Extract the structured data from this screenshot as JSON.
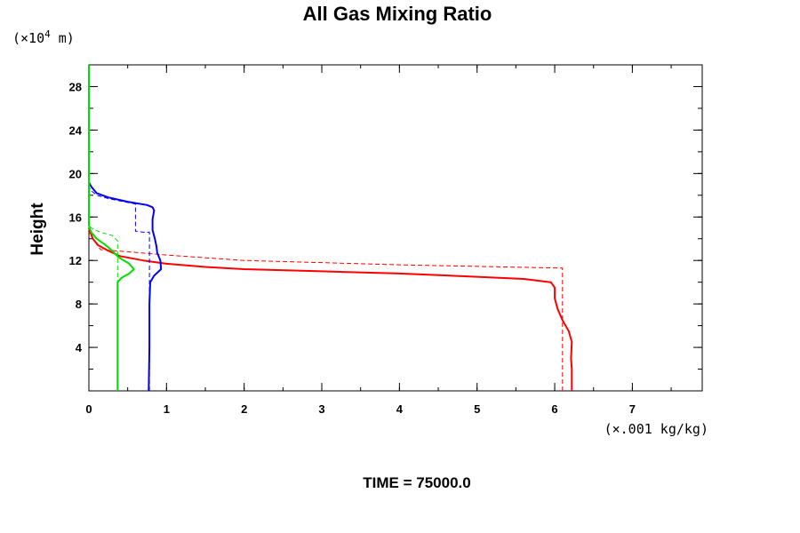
{
  "chart_data": {
    "type": "line",
    "title": "All Gas Mixing Ratio",
    "ylabel": "Height",
    "yunit_prefix": "(×10",
    "yunit_exp": "4",
    "yunit_suffix": " m)",
    "xunit": "(×.001 kg/kg)",
    "footer": "TIME = 75000.0",
    "xlim": [
      0,
      7.9
    ],
    "ylim": [
      0,
      30
    ],
    "xticks": [
      0,
      1,
      2,
      3,
      4,
      5,
      6,
      7
    ],
    "yticks": [
      4,
      8,
      12,
      16,
      20,
      24,
      28
    ],
    "x_minor_step": 0.5,
    "y_minor_step": 2,
    "grid": false,
    "series": [
      {
        "color": "#ff0000",
        "style": "solid",
        "points": [
          [
            6.22,
            0
          ],
          [
            6.22,
            2
          ],
          [
            6.21,
            3
          ],
          [
            6.22,
            4.5
          ],
          [
            6.18,
            5.5
          ],
          [
            6.1,
            6.5
          ],
          [
            6.04,
            7.5
          ],
          [
            6.0,
            8.5
          ],
          [
            6.0,
            9.5
          ],
          [
            5.95,
            10.0
          ],
          [
            5.6,
            10.3
          ],
          [
            5.0,
            10.5
          ],
          [
            4.0,
            10.8
          ],
          [
            3.0,
            11.0
          ],
          [
            2.0,
            11.2
          ],
          [
            1.5,
            11.4
          ],
          [
            1.0,
            11.7
          ],
          [
            0.7,
            12.0
          ],
          [
            0.4,
            12.4
          ],
          [
            0.25,
            12.9
          ],
          [
            0.12,
            13.4
          ],
          [
            0.05,
            14.0
          ],
          [
            0.02,
            14.6
          ],
          [
            0,
            15.0
          ]
        ]
      },
      {
        "color": "#ff0000",
        "style": "dashed",
        "points": [
          [
            6.1,
            0
          ],
          [
            6.1,
            11.3
          ],
          [
            4.0,
            11.6
          ],
          [
            2.0,
            12.0
          ],
          [
            1.0,
            12.5
          ],
          [
            0.5,
            12.8
          ],
          [
            0.15,
            13.0
          ],
          [
            0.1,
            13.5
          ],
          [
            0.05,
            14.0
          ],
          [
            0,
            14.6
          ]
        ]
      },
      {
        "color": "#0000ff",
        "style": "solid",
        "points": [
          [
            0.77,
            0
          ],
          [
            0.78,
            4
          ],
          [
            0.78,
            8
          ],
          [
            0.79,
            10.0
          ],
          [
            0.84,
            10.6
          ],
          [
            0.93,
            11.2
          ],
          [
            0.92,
            12.0
          ],
          [
            0.88,
            12.7
          ],
          [
            0.87,
            13.3
          ],
          [
            0.85,
            14.0
          ],
          [
            0.82,
            14.8
          ],
          [
            0.82,
            15.8
          ],
          [
            0.84,
            16.6
          ],
          [
            0.82,
            16.9
          ],
          [
            0.75,
            17.1
          ],
          [
            0.5,
            17.4
          ],
          [
            0.25,
            17.8
          ],
          [
            0.1,
            18.2
          ],
          [
            0.03,
            18.8
          ],
          [
            0,
            19.2
          ]
        ]
      },
      {
        "color": "#0000ff",
        "style": "dashed",
        "points": [
          [
            0.78,
            0
          ],
          [
            0.78,
            14.6
          ],
          [
            0.7,
            14.6
          ],
          [
            0.6,
            14.7
          ],
          [
            0.6,
            16.5
          ],
          [
            0.6,
            17.2
          ],
          [
            0.45,
            17.4
          ],
          [
            0.25,
            17.7
          ],
          [
            0.1,
            18.0
          ],
          [
            0.02,
            18.5
          ],
          [
            0,
            18.8
          ]
        ]
      },
      {
        "color": "#00e000",
        "style": "solid",
        "points": [
          [
            0.37,
            0
          ],
          [
            0.37,
            4
          ],
          [
            0.37,
            8
          ],
          [
            0.37,
            10.0
          ],
          [
            0.42,
            10.4
          ],
          [
            0.52,
            10.8
          ],
          [
            0.58,
            11.2
          ],
          [
            0.52,
            11.7
          ],
          [
            0.38,
            12.3
          ],
          [
            0.3,
            12.9
          ],
          [
            0.2,
            13.5
          ],
          [
            0.1,
            14.0
          ],
          [
            0.03,
            14.6
          ],
          [
            0,
            15.2
          ],
          [
            0,
            30
          ]
        ]
      },
      {
        "color": "#00e000",
        "style": "dashed",
        "points": [
          [
            0.37,
            0
          ],
          [
            0.37,
            13.8
          ],
          [
            0.3,
            14.3
          ],
          [
            0.15,
            14.6
          ],
          [
            0.05,
            14.9
          ],
          [
            0,
            15.2
          ]
        ]
      }
    ]
  }
}
